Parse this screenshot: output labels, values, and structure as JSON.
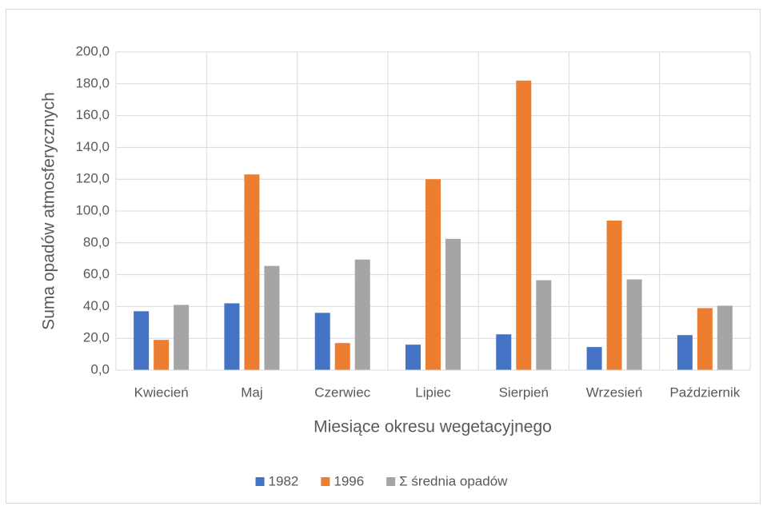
{
  "chart_data": {
    "type": "bar",
    "x_label": "Miesiące okresu wegetacyjnego",
    "y_label": "Suma opadów atmosferycznych",
    "categories": [
      "Kwiecień",
      "Maj",
      "Czerwiec",
      "Lipiec",
      "Sierpień",
      "Wrzesień",
      "Październik"
    ],
    "series": [
      {
        "name": "1982",
        "color": "#4472c4",
        "values": [
          37,
          42,
          36,
          16,
          22.5,
          14.5,
          22
        ]
      },
      {
        "name": "1996",
        "color": "#ed7d31",
        "values": [
          19,
          123,
          17,
          120,
          182,
          94,
          39
        ]
      },
      {
        "name": "Σ średnia opadów",
        "color": "#a5a5a5",
        "values": [
          41,
          65.5,
          69.5,
          82.5,
          56.5,
          57,
          40.5
        ]
      }
    ],
    "ylim": [
      0,
      200
    ],
    "yticks": [
      {
        "value": 0,
        "label": "0,0"
      },
      {
        "value": 20,
        "label": "20,0"
      },
      {
        "value": 40,
        "label": "40,0"
      },
      {
        "value": 60,
        "label": "60,0"
      },
      {
        "value": 80,
        "label": "80,0"
      },
      {
        "value": 100,
        "label": "100,0"
      },
      {
        "value": 120,
        "label": "120,0"
      },
      {
        "value": 140,
        "label": "140,0"
      },
      {
        "value": 160,
        "label": "160,0"
      },
      {
        "value": 180,
        "label": "180,0"
      },
      {
        "value": 200,
        "label": "200,0"
      }
    ],
    "grid": true,
    "legend": "bottom"
  }
}
